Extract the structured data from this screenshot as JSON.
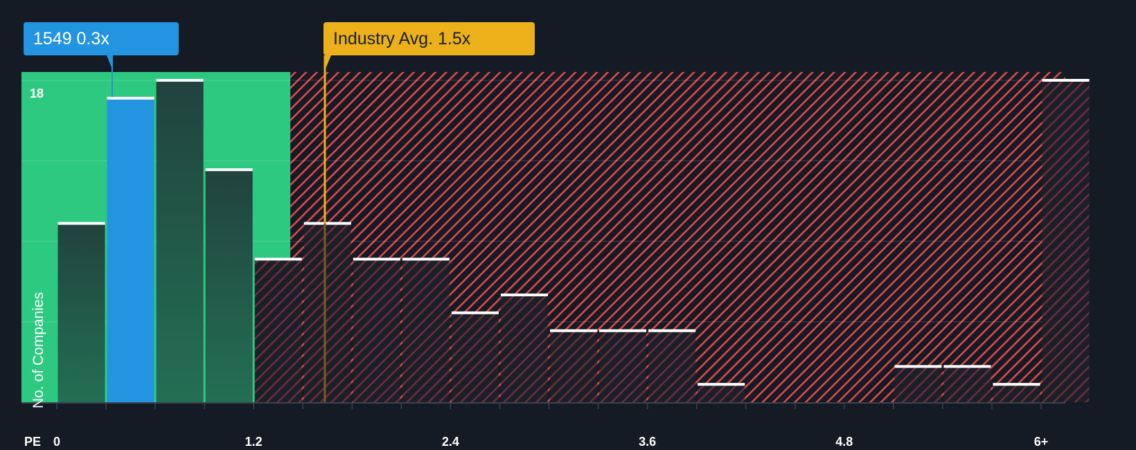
{
  "colors": {
    "background": "#151b24",
    "undervalued_region": "#2ec981",
    "overvalued_hatch": "#e0474c",
    "bar_fill": "#21473e",
    "bar_fill_over": "#1b1f2a",
    "bar_top": "#ffffff",
    "highlight_bar": "#2394df",
    "industry_line": "#ebb01a",
    "gridline": "#ffffff",
    "axis": "#3c424c"
  },
  "callouts": {
    "company": "1549 0.3x",
    "industry": "Industry Avg. 1.5x"
  },
  "axis": {
    "ylabel": "No. of Companies",
    "ytick_label": "18",
    "xprefix": "PE",
    "xticks": [
      {
        "value": 0,
        "label": "0"
      },
      {
        "value": 1.2,
        "label": "1.2"
      },
      {
        "value": 2.4,
        "label": "2.4"
      },
      {
        "value": 3.6,
        "label": "3.6"
      },
      {
        "value": 4.8,
        "label": "4.8"
      },
      {
        "value": 6,
        "label": "6+"
      }
    ]
  },
  "chart_data": {
    "type": "bar",
    "title": "",
    "xlabel": "PE",
    "ylabel": "No. of Companies",
    "bin_width": 0.3,
    "categories": [
      "0-0.3",
      "0.3-0.6",
      "0.6-0.9",
      "0.9-1.2",
      "1.2-1.5",
      "1.5-1.8",
      "1.8-2.1",
      "2.1-2.4",
      "2.4-2.7",
      "2.7-3.0",
      "3.0-3.3",
      "3.3-3.6",
      "3.6-3.9",
      "3.9-4.2",
      "4.2-4.5",
      "4.5-4.8",
      "4.8-5.1",
      "5.1-5.4",
      "5.4-5.7",
      "5.7-6.0",
      "6+"
    ],
    "values": [
      10,
      17,
      18,
      13,
      8,
      10,
      8,
      8,
      5,
      6,
      4,
      4,
      4,
      1,
      0,
      0,
      0,
      2,
      2,
      1,
      18
    ],
    "highlight_index": 1,
    "company": {
      "name": "1549",
      "pe": 0.3
    },
    "industry_avg": 1.5,
    "ylim": [
      0,
      18.65
    ],
    "yticks_gridlines": [
      4.5,
      9,
      13.5,
      18
    ],
    "xlim": [
      -0.22,
      6.15
    ],
    "regions": [
      {
        "name": "undervalued",
        "from": -0.22,
        "to": 1.5
      },
      {
        "name": "overvalued",
        "from": 1.5,
        "to": 6.15
      }
    ]
  }
}
